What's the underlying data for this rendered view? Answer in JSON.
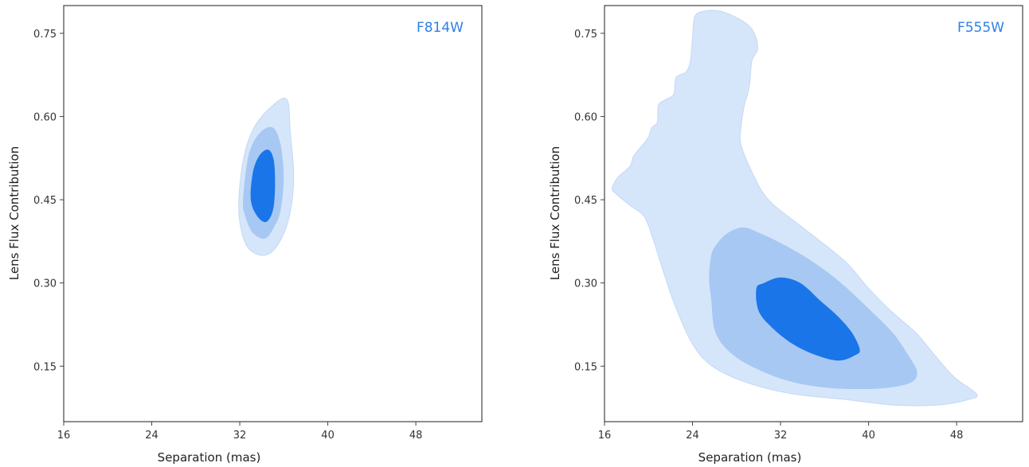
{
  "chart_data": [
    {
      "type": "contour",
      "panel_label": "F814W",
      "xlabel": "Separation (mas)",
      "ylabel": "Lens Flux Contribution",
      "xlim": [
        16,
        54
      ],
      "ylim": [
        0.05,
        0.8
      ],
      "xticks": [
        16,
        24,
        32,
        40,
        48
      ],
      "yticks": [
        0.15,
        0.3,
        0.45,
        0.6,
        0.75
      ],
      "xtick_labels": [
        "16",
        "24",
        "32",
        "40",
        "48"
      ],
      "ytick_labels": [
        "0.15",
        "0.30",
        "0.45",
        "0.60",
        "0.75"
      ],
      "levels": [
        {
          "name": "outer",
          "color": "#d6e6fa",
          "points": [
            [
              31.9,
              0.44
            ],
            [
              32.3,
              0.52
            ],
            [
              33.3,
              0.58
            ],
            [
              35.0,
              0.62
            ],
            [
              36.3,
              0.63
            ],
            [
              36.6,
              0.57
            ],
            [
              36.9,
              0.49
            ],
            [
              36.5,
              0.42
            ],
            [
              35.5,
              0.37
            ],
            [
              34.3,
              0.35
            ],
            [
              32.9,
              0.36
            ],
            [
              32.2,
              0.39
            ]
          ]
        },
        {
          "name": "middle",
          "color": "#a7c8f3",
          "points": [
            [
              32.3,
              0.45
            ],
            [
              32.8,
              0.53
            ],
            [
              33.8,
              0.57
            ],
            [
              35.0,
              0.58
            ],
            [
              35.7,
              0.55
            ],
            [
              36.0,
              0.49
            ],
            [
              35.7,
              0.43
            ],
            [
              35.1,
              0.4
            ],
            [
              34.3,
              0.38
            ],
            [
              33.2,
              0.39
            ],
            [
              32.5,
              0.42
            ]
          ]
        },
        {
          "name": "inner",
          "color": "#1a75e8",
          "points": [
            [
              33.0,
              0.45
            ],
            [
              33.2,
              0.5
            ],
            [
              33.8,
              0.53
            ],
            [
              34.6,
              0.54
            ],
            [
              35.1,
              0.52
            ],
            [
              35.2,
              0.47
            ],
            [
              35.0,
              0.43
            ],
            [
              34.4,
              0.41
            ],
            [
              33.6,
              0.42
            ]
          ]
        }
      ]
    },
    {
      "type": "contour",
      "panel_label": "F555W",
      "xlabel": "Separation (mas)",
      "ylabel": "Lens Flux Contribution",
      "xlim": [
        16,
        54
      ],
      "ylim": [
        0.05,
        0.8
      ],
      "xticks": [
        16,
        24,
        32,
        40,
        48
      ],
      "yticks": [
        0.15,
        0.3,
        0.45,
        0.6,
        0.75
      ],
      "xtick_labels": [
        "16",
        "24",
        "32",
        "40",
        "48"
      ],
      "ytick_labels": [
        "0.15",
        "0.30",
        "0.45",
        "0.60",
        "0.75"
      ],
      "levels": [
        {
          "name": "outer",
          "color": "#d6e6fa",
          "points": [
            [
              16.7,
              0.47
            ],
            [
              17.2,
              0.49
            ],
            [
              18.3,
              0.51
            ],
            [
              18.7,
              0.53
            ],
            [
              19.9,
              0.56
            ],
            [
              20.3,
              0.58
            ],
            [
              20.8,
              0.59
            ],
            [
              20.9,
              0.62
            ],
            [
              21.5,
              0.63
            ],
            [
              22.3,
              0.64
            ],
            [
              22.5,
              0.67
            ],
            [
              23.4,
              0.68
            ],
            [
              23.8,
              0.7
            ],
            [
              24.0,
              0.74
            ],
            [
              24.2,
              0.78
            ],
            [
              25.1,
              0.79
            ],
            [
              26.5,
              0.79
            ],
            [
              28.3,
              0.775
            ],
            [
              29.3,
              0.76
            ],
            [
              29.8,
              0.74
            ],
            [
              29.9,
              0.72
            ],
            [
              29.4,
              0.7
            ],
            [
              29.2,
              0.66
            ],
            [
              29.0,
              0.64
            ],
            [
              28.7,
              0.62
            ],
            [
              28.4,
              0.58
            ],
            [
              28.4,
              0.55
            ],
            [
              29.4,
              0.5
            ],
            [
              30.9,
              0.45
            ],
            [
              34.0,
              0.4
            ],
            [
              37.8,
              0.34
            ],
            [
              40.0,
              0.29
            ],
            [
              42.0,
              0.25
            ],
            [
              44.3,
              0.21
            ],
            [
              46.0,
              0.17
            ],
            [
              47.8,
              0.13
            ],
            [
              49.8,
              0.1
            ],
            [
              49.1,
              0.09
            ],
            [
              46.3,
              0.08
            ],
            [
              42.2,
              0.08
            ],
            [
              37.9,
              0.09
            ],
            [
              33.1,
              0.1
            ],
            [
              29.0,
              0.12
            ],
            [
              25.8,
              0.15
            ],
            [
              24.0,
              0.19
            ],
            [
              22.4,
              0.26
            ],
            [
              21.2,
              0.33
            ],
            [
              20.4,
              0.38
            ],
            [
              19.6,
              0.42
            ],
            [
              18.3,
              0.44
            ],
            [
              17.1,
              0.46
            ]
          ]
        },
        {
          "name": "middle",
          "color": "#a7c8f3",
          "points": [
            [
              25.7,
              0.35
            ],
            [
              26.2,
              0.37
            ],
            [
              27.2,
              0.39
            ],
            [
              28.6,
              0.4
            ],
            [
              30.1,
              0.39
            ],
            [
              32.2,
              0.37
            ],
            [
              34.8,
              0.34
            ],
            [
              37.5,
              0.3
            ],
            [
              40.2,
              0.25
            ],
            [
              42.2,
              0.21
            ],
            [
              43.6,
              0.17
            ],
            [
              44.4,
              0.14
            ],
            [
              43.8,
              0.12
            ],
            [
              41.1,
              0.11
            ],
            [
              37.0,
              0.11
            ],
            [
              33.4,
              0.12
            ],
            [
              30.4,
              0.14
            ],
            [
              27.7,
              0.17
            ],
            [
              26.1,
              0.21
            ],
            [
              25.7,
              0.27
            ],
            [
              25.5,
              0.31
            ]
          ]
        },
        {
          "name": "inner",
          "color": "#1a75e8",
          "points": [
            [
              29.8,
              0.29
            ],
            [
              30.5,
              0.3
            ],
            [
              32.0,
              0.31
            ],
            [
              33.8,
              0.3
            ],
            [
              35.5,
              0.27
            ],
            [
              37.2,
              0.24
            ],
            [
              38.5,
              0.21
            ],
            [
              39.2,
              0.18
            ],
            [
              38.8,
              0.17
            ],
            [
              37.3,
              0.16
            ],
            [
              35.2,
              0.17
            ],
            [
              33.1,
              0.19
            ],
            [
              31.2,
              0.22
            ],
            [
              30.0,
              0.25
            ]
          ]
        }
      ]
    }
  ],
  "colors": {
    "panel_label": "#2f80e8",
    "axes": "#444444"
  }
}
